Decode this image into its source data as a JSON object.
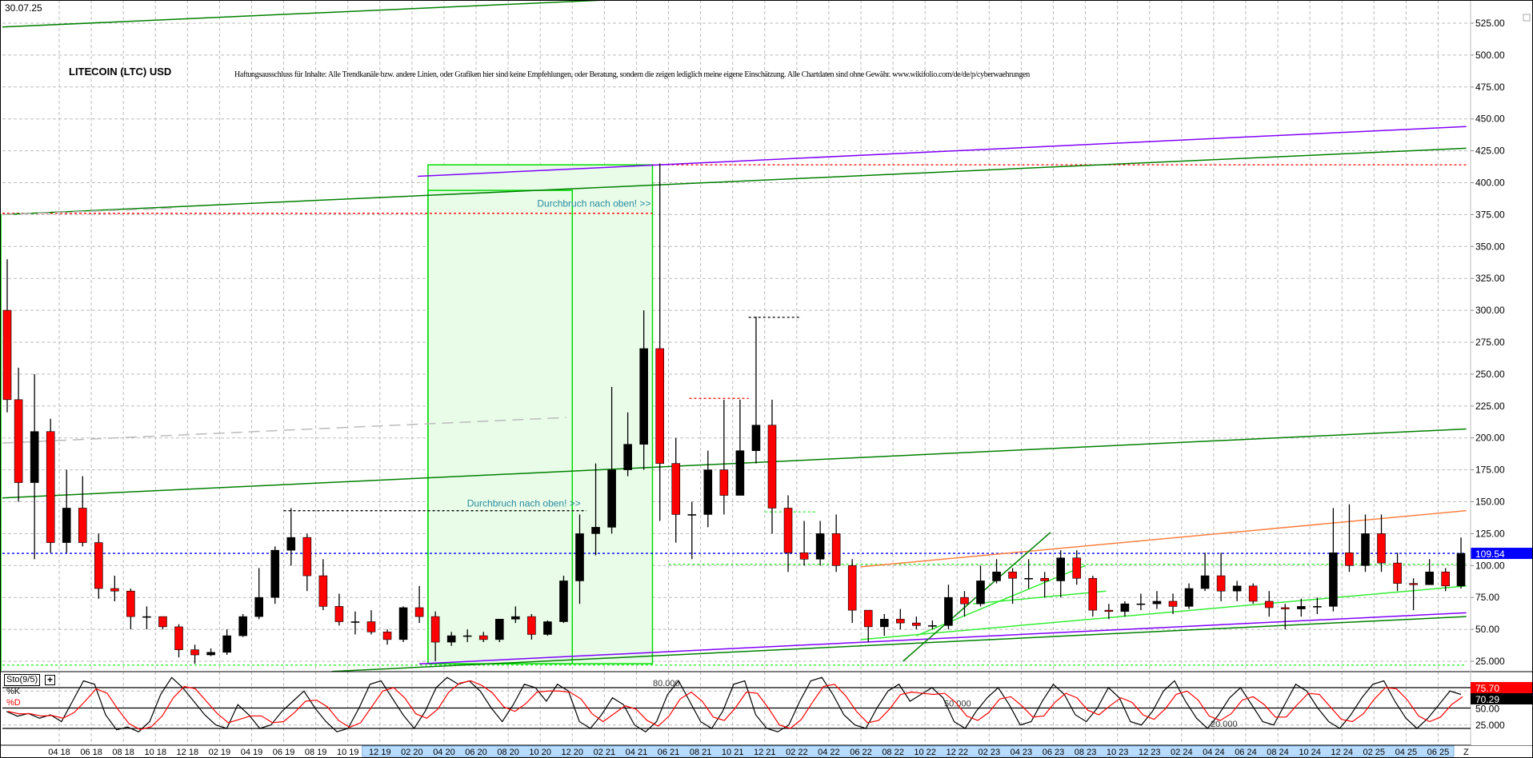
{
  "header": {
    "date": "30.07.25",
    "title": "LITECOIN (LTC) USD",
    "disclaimer": "Haftungsausschluss für Inhalte: Alle Trendkanäle bzw. andere Linien, oder Grafiken hier sind keine Empfehlungen, oder Beratung, sondern die zeigen lediglich meine eigene Einschätzung. Alle Chartdaten sind ohne Gewähr. www.wikifolio.com/de/de/p/cyberwaehrungen"
  },
  "colors": {
    "up_candle": "#000000",
    "down_candle": "#ff0000",
    "grid": "#bbbbbb",
    "current_price": "#0000ff",
    "zone_fill": "#e8fce8",
    "zone_border": "#00dd00",
    "channel_green": "#008000",
    "channel_purple": "#8000ff",
    "light_green": "#33ee33",
    "orange": "#ff8040",
    "resistance_red": "#ff0000",
    "annotation": "#2a8aa0",
    "time_highlight": "#b8dcff"
  },
  "chart_data": {
    "type": "candlestick",
    "title": "LITECOIN (LTC) USD",
    "ylim": [
      15,
      540
    ],
    "yticks": [
      "525.00",
      "500.00",
      "475.00",
      "450.00",
      "425.00",
      "400.00",
      "375.00",
      "350.00",
      "325.00",
      "300.00",
      "275.00",
      "250.00",
      "225.00",
      "200.00",
      "175.00",
      "150.00",
      "125.00",
      "100.00",
      "75.00",
      "50.00",
      "25.000"
    ],
    "ytick_values": [
      525,
      500,
      475,
      450,
      425,
      400,
      375,
      350,
      325,
      300,
      275,
      250,
      225,
      200,
      175,
      150,
      125,
      100,
      75,
      50,
      25
    ],
    "grid": true,
    "last_price": "109.54",
    "candles": [
      [
        "2017-12",
        300,
        340,
        220,
        230
      ],
      [
        "2018-01",
        230,
        255,
        150,
        165
      ],
      [
        "2018-02",
        165,
        250,
        105,
        205
      ],
      [
        "2018-03",
        205,
        215,
        110,
        118
      ],
      [
        "2018-04",
        118,
        175,
        110,
        145
      ],
      [
        "2018-05",
        145,
        170,
        115,
        118
      ],
      [
        "2018-06",
        118,
        125,
        74,
        82
      ],
      [
        "2018-07",
        82,
        92,
        72,
        80
      ],
      [
        "2018-08",
        80,
        82,
        50,
        60
      ],
      [
        "2018-09",
        60,
        68,
        50,
        60
      ],
      [
        "2018-10",
        60,
        60,
        50,
        52
      ],
      [
        "2018-11",
        52,
        54,
        28,
        34
      ],
      [
        "2018-12",
        34,
        38,
        23,
        30
      ],
      [
        "2019-01",
        30,
        35,
        29,
        32
      ],
      [
        "2019-02",
        32,
        50,
        30,
        45
      ],
      [
        "2019-03",
        45,
        62,
        44,
        60
      ],
      [
        "2019-04",
        60,
        98,
        58,
        75
      ],
      [
        "2019-05",
        75,
        115,
        70,
        112
      ],
      [
        "2019-06",
        112,
        145,
        100,
        122
      ],
      [
        "2019-07",
        122,
        125,
        80,
        92
      ],
      [
        "2019-08",
        92,
        105,
        65,
        68
      ],
      [
        "2019-09",
        68,
        78,
        53,
        56
      ],
      [
        "2019-10",
        56,
        64,
        46,
        56
      ],
      [
        "2019-11",
        56,
        65,
        46,
        48
      ],
      [
        "2019-12",
        48,
        50,
        38,
        42
      ],
      [
        "2020-01",
        42,
        68,
        40,
        67
      ],
      [
        "2020-02",
        67,
        84,
        55,
        60
      ],
      [
        "2020-03",
        60,
        64,
        25,
        40
      ],
      [
        "2020-04",
        40,
        48,
        37,
        45
      ],
      [
        "2020-05",
        45,
        50,
        40,
        45
      ],
      [
        "2020-06",
        45,
        48,
        40,
        42
      ],
      [
        "2020-07",
        42,
        58,
        40,
        58
      ],
      [
        "2020-08",
        58,
        68,
        55,
        60
      ],
      [
        "2020-09",
        60,
        62,
        42,
        46
      ],
      [
        "2020-10",
        46,
        57,
        45,
        56
      ],
      [
        "2020-11",
        56,
        92,
        55,
        88
      ],
      [
        "2020-12",
        88,
        140,
        70,
        125
      ],
      [
        "2021-01",
        125,
        180,
        108,
        130
      ],
      [
        "2021-02",
        130,
        240,
        125,
        175
      ],
      [
        "2021-03",
        175,
        220,
        170,
        195
      ],
      [
        "2021-04",
        195,
        300,
        175,
        270
      ],
      [
        "2021-05",
        270,
        415,
        135,
        180
      ],
      [
        "2021-06",
        180,
        200,
        118,
        140
      ],
      [
        "2021-07",
        140,
        150,
        105,
        140
      ],
      [
        "2021-08",
        140,
        190,
        130,
        175
      ],
      [
        "2021-09",
        175,
        230,
        140,
        155
      ],
      [
        "2021-10",
        155,
        230,
        155,
        190
      ],
      [
        "2021-11",
        190,
        295,
        180,
        210
      ],
      [
        "2021-12",
        210,
        230,
        125,
        145
      ],
      [
        "2022-01",
        145,
        155,
        95,
        110
      ],
      [
        "2022-02",
        110,
        135,
        100,
        105
      ],
      [
        "2022-03",
        105,
        135,
        100,
        125
      ],
      [
        "2022-04",
        125,
        140,
        95,
        100
      ],
      [
        "2022-05",
        100,
        105,
        55,
        65
      ],
      [
        "2022-06",
        65,
        65,
        40,
        52
      ],
      [
        "2022-07",
        52,
        62,
        45,
        58
      ],
      [
        "2022-08",
        58,
        66,
        50,
        55
      ],
      [
        "2022-09",
        55,
        60,
        50,
        53
      ],
      [
        "2022-10",
        53,
        57,
        50,
        53
      ],
      [
        "2022-11",
        53,
        85,
        50,
        75
      ],
      [
        "2022-12",
        75,
        80,
        60,
        70
      ],
      [
        "2023-01",
        70,
        100,
        68,
        88
      ],
      [
        "2023-02",
        88,
        105,
        86,
        95
      ],
      [
        "2023-03",
        95,
        98,
        70,
        90
      ],
      [
        "2023-04",
        90,
        105,
        82,
        90
      ],
      [
        "2023-05",
        90,
        95,
        75,
        88
      ],
      [
        "2023-06",
        88,
        112,
        75,
        106
      ],
      [
        "2023-07",
        106,
        112,
        85,
        90
      ],
      [
        "2023-08",
        90,
        92,
        60,
        65
      ],
      [
        "2023-09",
        65,
        70,
        58,
        64
      ],
      [
        "2023-10",
        64,
        72,
        60,
        70
      ],
      [
        "2023-11",
        70,
        78,
        65,
        70
      ],
      [
        "2023-12",
        70,
        80,
        66,
        72
      ],
      [
        "2024-01",
        72,
        78,
        62,
        68
      ],
      [
        "2024-02",
        68,
        86,
        66,
        82
      ],
      [
        "2024-03",
        82,
        110,
        80,
        92
      ],
      [
        "2024-04",
        92,
        110,
        72,
        80
      ],
      [
        "2024-05",
        80,
        88,
        72,
        84
      ],
      [
        "2024-06",
        84,
        86,
        70,
        72
      ],
      [
        "2024-07",
        72,
        80,
        60,
        67
      ],
      [
        "2024-08",
        67,
        70,
        50,
        66
      ],
      [
        "2024-09",
        66,
        74,
        60,
        68
      ],
      [
        "2024-10",
        68,
        75,
        62,
        68
      ],
      [
        "2024-11",
        68,
        145,
        64,
        110
      ],
      [
        "2024-12",
        110,
        148,
        95,
        100
      ],
      [
        "2025-01",
        100,
        140,
        95,
        125
      ],
      [
        "2025-02",
        125,
        140,
        95,
        102
      ],
      [
        "2025-03",
        102,
        110,
        80,
        86
      ],
      [
        "2025-04",
        86,
        90,
        65,
        85
      ],
      [
        "2025-05",
        85,
        105,
        85,
        95
      ],
      [
        "2025-06",
        95,
        98,
        80,
        84
      ],
      [
        "2025-07",
        84,
        122,
        82,
        109.54
      ]
    ],
    "trendlines": [
      {
        "from": [
          "2017-12-10",
          522
        ],
        "to": [
          "2021-01-25",
          543
        ],
        "color": "channel_green",
        "style": "solid"
      },
      {
        "from": [
          "2020-02-12",
          405
        ],
        "to": [
          "2025-07-24",
          444
        ],
        "color": "channel_purple",
        "style": "solid"
      },
      {
        "from": [
          "2017-12-10",
          375
        ],
        "to": [
          "2025-07-24",
          427
        ],
        "color": "channel_green",
        "style": "solid"
      },
      {
        "from": [
          "2017-12-10",
          153
        ],
        "to": [
          "2025-07-24",
          207
        ],
        "color": "channel_green",
        "style": "solid"
      },
      {
        "from": [
          "2020-02-15",
          23
        ],
        "to": [
          "2025-07-24",
          63
        ],
        "color": "channel_purple",
        "style": "solid"
      },
      {
        "from": [
          "2019-09-01",
          17
        ],
        "to": [
          "2025-07-24",
          60
        ],
        "color": "channel_green",
        "style": "solid"
      },
      {
        "from": [
          "2022-06-01",
          99
        ],
        "to": [
          "2025-07-24",
          143
        ],
        "color": "orange",
        "style": "solid"
      },
      {
        "from": [
          "2022-06-01",
          42
        ],
        "to": [
          "2025-07-24",
          84
        ],
        "color": "light_green",
        "style": "solid"
      },
      {
        "from": [
          "2022-08-20",
          25
        ],
        "to": [
          "2023-05-26",
          126
        ],
        "color": "channel_green",
        "style": "solid"
      },
      {
        "from": [
          "2022-09-15",
          45
        ],
        "to": [
          "2023-08-01",
          100
        ],
        "color": "light_green",
        "style": "solid"
      },
      {
        "from": [
          "2023-01-01",
          70
        ],
        "to": [
          "2023-09-10",
          80
        ],
        "color": "light_green",
        "style": "solid"
      },
      {
        "from": [
          "2017-12-10",
          375
        ],
        "to": [
          "2018-11-01",
          380
        ],
        "color": "grid",
        "style": "longdash"
      },
      {
        "from": [
          "2017-12-10",
          196
        ],
        "to": [
          "2020-11-20",
          216
        ],
        "color": "grid",
        "style": "longdash"
      }
    ],
    "horizontal_levels": [
      {
        "price": 414,
        "from": "2021-05-01",
        "to": "2025-07-24",
        "color": "resistance_red"
      },
      {
        "price": 376,
        "from": "2017-12-10",
        "to": "2021-05-01",
        "color": "resistance_red"
      },
      {
        "price": 231,
        "from": "2021-07-10",
        "to": "2021-11-01",
        "color": "resistance_red"
      },
      {
        "price": 294.5,
        "from": "2021-11-01",
        "to": "2022-02-10",
        "color": "up_candle"
      },
      {
        "price": 143,
        "from": "2019-06-01",
        "to": "2020-12-28",
        "color": "up_candle"
      },
      {
        "price": 142,
        "from": "2021-12-01",
        "to": "2022-03-10",
        "color": "light_green"
      },
      {
        "price": 101,
        "from": "2021-06-01",
        "to": "2025-07-24",
        "color": "light_green"
      },
      {
        "price": 22,
        "from": "2017-12-10",
        "to": "2025-07-24",
        "color": "light_green"
      },
      {
        "price": 109.54,
        "from": "2017-12-10",
        "to": "2025-07-24",
        "color": "current_price"
      }
    ],
    "zones": [
      {
        "from": "2020-03-01",
        "to": "2021-05-01",
        "top": 414,
        "bottom": 23,
        "filled": true
      },
      {
        "from": "2020-03-01",
        "to": "2020-12-01",
        "top": 394,
        "bottom": 23,
        "filled": false
      },
      {
        "from": "2017-12-10",
        "to": "2017-12-12",
        "top": 375,
        "bottom": 18,
        "filled": false
      }
    ],
    "annotations": [
      {
        "text": "Durchbruch nach oben! >>",
        "date": "2021-05-01",
        "price": 380
      },
      {
        "text": "Durchbruch nach oben! >>",
        "date": "2020-12-20",
        "price": 145
      }
    ]
  },
  "stochastic": {
    "label": "Sto(9/5)",
    "add_icon": "plus-box-icon",
    "k_label": "%K",
    "d_label": "%D",
    "k_value": "70.29",
    "d_value": "75.70",
    "levels": [
      80,
      50,
      20
    ],
    "level_labels": [
      "80.000",
      "50.000",
      "20.000"
    ],
    "axis_labels": [
      "50.00",
      "25.000"
    ],
    "k": [
      45,
      38,
      42,
      35,
      40,
      30,
      60,
      90,
      85,
      40,
      18,
      22,
      15,
      30,
      70,
      95,
      80,
      60,
      40,
      25,
      20,
      55,
      40,
      20,
      25,
      45,
      60,
      75,
      50,
      30,
      15,
      20,
      50,
      85,
      90,
      65,
      40,
      20,
      45,
      80,
      95,
      85,
      90,
      75,
      50,
      30,
      55,
      85,
      80,
      60,
      85,
      75,
      30,
      20,
      40,
      65,
      55,
      25,
      15,
      30,
      70,
      90,
      60,
      30,
      20,
      45,
      85,
      90,
      40,
      20,
      15,
      25,
      60,
      90,
      95,
      70,
      40,
      25,
      20,
      50,
      75,
      85,
      60,
      70,
      80,
      65,
      30,
      20,
      45,
      65,
      80,
      55,
      25,
      30,
      60,
      85,
      70,
      40,
      30,
      50,
      80,
      65,
      30,
      25,
      45,
      75,
      90,
      60,
      35,
      20,
      40,
      65,
      80,
      55,
      30,
      25,
      55,
      85,
      75,
      50,
      30,
      20,
      40,
      65,
      85,
      90,
      60,
      35,
      20,
      35,
      55,
      75,
      70
    ],
    "ylim": [
      0,
      100
    ]
  },
  "time_axis": {
    "labels": [
      "04 18",
      "06 18",
      "08 18",
      "10 18",
      "12 18",
      "02 19",
      "04 19",
      "06 19",
      "08 19",
      "10 19",
      "12 19",
      "02 20",
      "04 20",
      "06 20",
      "08 20",
      "10 20",
      "12 20",
      "02 21",
      "04 21",
      "06 21",
      "08 21",
      "10 21",
      "12 21",
      "02 22",
      "04 22",
      "06 22",
      "08 22",
      "10 22",
      "12 22",
      "02 23",
      "04 23",
      "06 23",
      "08 23",
      "10 23",
      "12 23",
      "02 24",
      "04 24",
      "06 24",
      "08 24",
      "10 24",
      "12 24",
      "02 25",
      "04 25",
      "06 25"
    ],
    "highlight_from": "12 19",
    "end_marker": "Z"
  }
}
